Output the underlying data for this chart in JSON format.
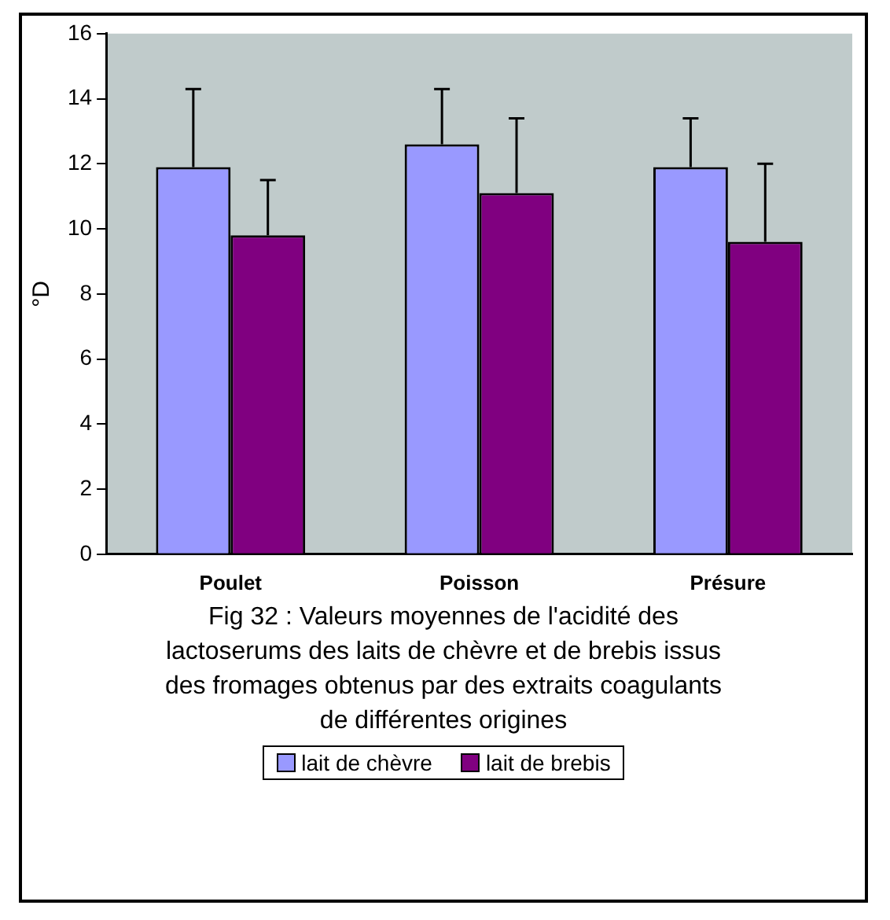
{
  "chart_data": {
    "type": "bar",
    "ylabel": "°D",
    "categories": [
      "Poulet",
      "Poisson",
      "Présure"
    ],
    "series": [
      {
        "name": "lait de chèvre",
        "color": "#9999ff",
        "values": [
          11.9,
          12.6,
          11.9
        ],
        "errors": [
          [
            11.9,
            14.3
          ],
          [
            12.6,
            14.3
          ],
          [
            11.9,
            13.4
          ]
        ]
      },
      {
        "name": "lait de brebis",
        "color": "#800080",
        "values": [
          9.8,
          11.1,
          9.6
        ],
        "errors": [
          [
            9.8,
            11.5
          ],
          [
            11.1,
            13.4
          ],
          [
            9.6,
            12.0
          ]
        ]
      }
    ],
    "ylim": [
      0,
      16
    ],
    "yticks": [
      0,
      2,
      4,
      6,
      8,
      10,
      12,
      14,
      16
    ],
    "grid": false,
    "legend": "bottom",
    "annotations": [
      "Fig 32 : Valeurs moyennes de l'acidité des lactoserums des laits de chèvre et de brebis issus des fromages obtenus par des extraits coagulants de différentes origines"
    ]
  }
}
